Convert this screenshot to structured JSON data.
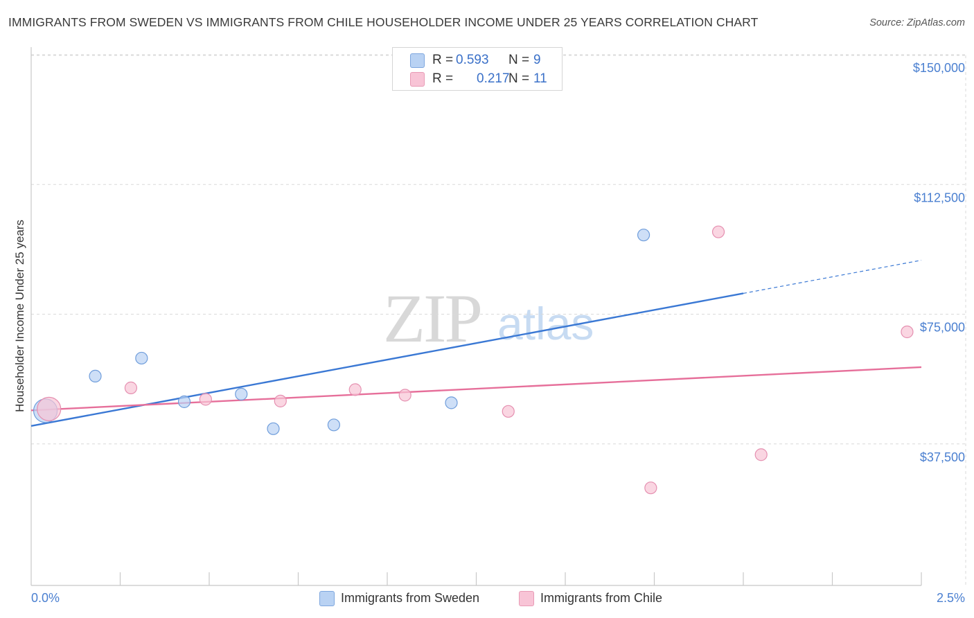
{
  "title": "IMMIGRANTS FROM SWEDEN VS IMMIGRANTS FROM CHILE HOUSEHOLDER INCOME UNDER 25 YEARS CORRELATION CHART",
  "source": "Source: ZipAtlas.com",
  "watermark": {
    "zip": "ZIP",
    "atlas": "atlas"
  },
  "legend": {
    "sweden": {
      "r_label": "R =",
      "r_value": "0.593",
      "n_label": "N =",
      "n_value": "9"
    },
    "chile": {
      "r_label": "R =",
      "r_value": "0.217",
      "n_label": "N =",
      "n_value": "11"
    }
  },
  "chart_data": {
    "type": "scatter",
    "xlabel": "",
    "ylabel": "Householder Income Under 25 years",
    "xlim": [
      0.0,
      2.5
    ],
    "ylim": [
      0,
      157500
    ],
    "x_tick_labels": [
      "0.0%",
      "2.5%"
    ],
    "y_ticks": [
      37500,
      75000,
      112500,
      150000
    ],
    "y_tick_labels": [
      "$37,500",
      "$75,000",
      "$112,500",
      "$150,000"
    ],
    "grid": true,
    "colors": {
      "sweden": "#3a78d4",
      "chile": "#e66f9a",
      "sweden_fill": "#b9d2f3",
      "chile_fill": "#f8c4d6"
    },
    "series": [
      {
        "name": "Immigrants from Sweden",
        "key": "sweden",
        "points": [
          {
            "x": 0.04,
            "y": 50500,
            "big": true
          },
          {
            "x": 0.18,
            "y": 60500
          },
          {
            "x": 0.31,
            "y": 65700
          },
          {
            "x": 0.43,
            "y": 53100
          },
          {
            "x": 0.59,
            "y": 55300
          },
          {
            "x": 0.68,
            "y": 45300
          },
          {
            "x": 0.85,
            "y": 46400
          },
          {
            "x": 1.18,
            "y": 52800
          },
          {
            "x": 1.72,
            "y": 101300
          }
        ],
        "trend": {
          "x0": 0.0,
          "y0": 46100,
          "x1": 2.5,
          "y1": 94000,
          "solid_until": 2.0
        }
      },
      {
        "name": "Immigrants from Chile",
        "key": "chile",
        "points": [
          {
            "x": 0.05,
            "y": 51000,
            "big": true
          },
          {
            "x": 0.28,
            "y": 57100
          },
          {
            "x": 0.49,
            "y": 53800
          },
          {
            "x": 0.7,
            "y": 53300
          },
          {
            "x": 0.91,
            "y": 56600
          },
          {
            "x": 1.05,
            "y": 55000
          },
          {
            "x": 1.34,
            "y": 50300
          },
          {
            "x": 1.74,
            "y": 28200
          },
          {
            "x": 1.93,
            "y": 102200
          },
          {
            "x": 2.05,
            "y": 37800
          },
          {
            "x": 2.46,
            "y": 73300
          }
        ],
        "trend": {
          "x0": 0.0,
          "y0": 50600,
          "x1": 2.5,
          "y1": 63100,
          "solid_until": 2.5
        }
      }
    ]
  }
}
